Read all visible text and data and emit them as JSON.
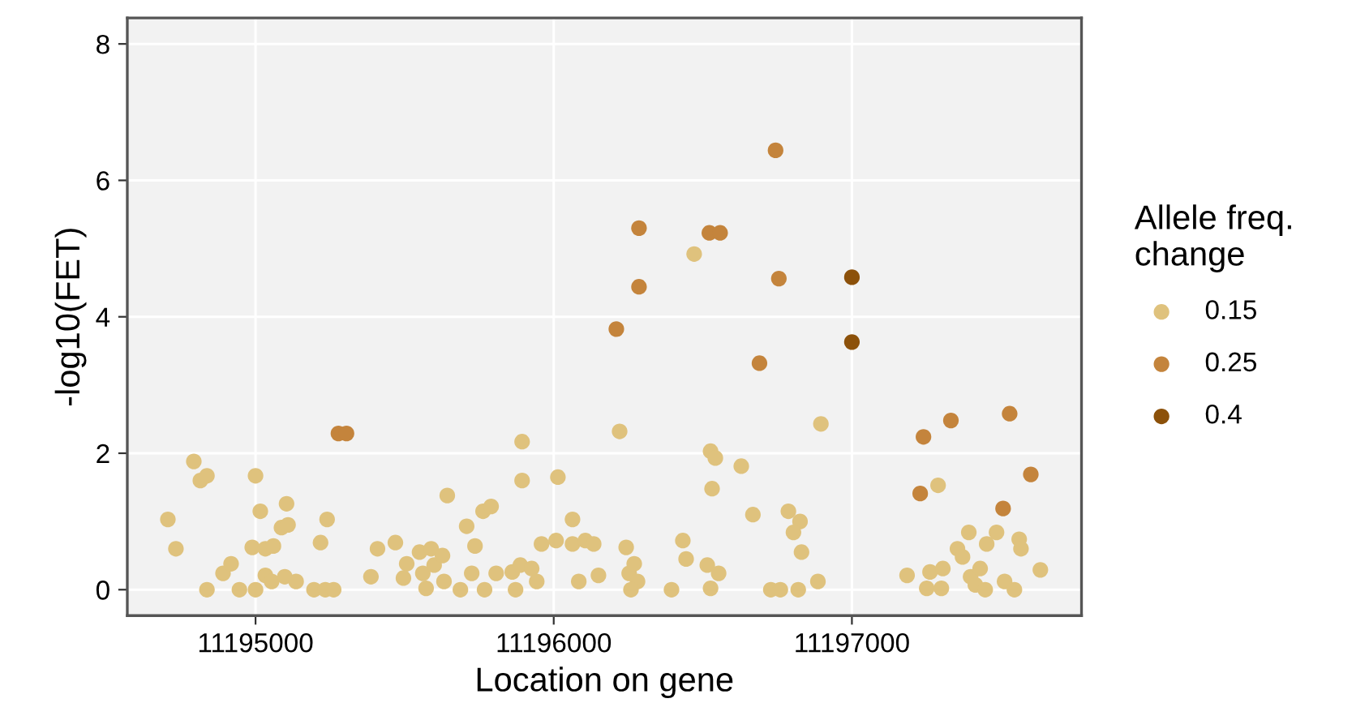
{
  "chart_data": {
    "type": "scatter",
    "xlabel": "Location on gene",
    "ylabel": "-log10(FET)",
    "legend_title": "Allele freq.\nchange",
    "legend": "right",
    "grid": true,
    "marker": "circle",
    "xlim": [
      11194570,
      11197770
    ],
    "ylim": [
      -0.38,
      8.38
    ],
    "xticks": [
      11195000,
      11196000,
      11197000
    ],
    "yticks": [
      0,
      2,
      4,
      6,
      8
    ],
    "series": [
      {
        "name": "0.15",
        "color": "#dfc27d",
        "x": [
          11194706,
          11194733,
          11194793,
          11194815,
          11194837,
          11194837,
          11194891,
          11194918,
          11194946,
          11195000,
          11195016,
          11194989,
          11195033,
          11195060,
          11195000,
          11195033,
          11195054,
          11195104,
          11195087,
          11195109,
          11195098,
          11195136,
          11195196,
          11195234,
          11195262,
          11195218,
          11195240,
          11195387,
          11195409,
          11195469,
          11195507,
          11195496,
          11195550,
          11195561,
          11195589,
          11195599,
          11195627,
          11195572,
          11195632,
          11195643,
          11195687,
          11195708,
          11195736,
          11195725,
          11195763,
          11195790,
          11195768,
          11195807,
          11195861,
          11195872,
          11195888,
          11195926,
          11195943,
          11195894,
          11195894,
          11195959,
          11196008,
          11196014,
          11196063,
          11196063,
          11196106,
          11196134,
          11196084,
          11196150,
          11196221,
          11196243,
          11196253,
          11196270,
          11196281,
          11196259,
          11196395,
          11196433,
          11196444,
          11196471,
          11196515,
          11196526,
          11196553,
          11196531,
          11196526,
          11196542,
          11196629,
          11196668,
          11196728,
          11196760,
          11196820,
          11196787,
          11196826,
          11196804,
          11196831,
          11196886,
          11196896,
          11197185,
          11197262,
          11197289,
          11197251,
          11197305,
          11197300,
          11197354,
          11197371,
          11197392,
          11197452,
          11197485,
          11197398,
          11197414,
          11197430,
          11197447,
          11197561,
          11197567,
          11197512,
          11197545,
          11197632
        ],
        "values": [
          1.03,
          0.6,
          1.88,
          1.6,
          1.67,
          0,
          0.24,
          0.38,
          0,
          1.67,
          1.15,
          0.62,
          0.6,
          0.64,
          0,
          0.21,
          0.12,
          1.26,
          0.91,
          0.95,
          0.19,
          0.12,
          0,
          0,
          0,
          0.69,
          1.03,
          0.19,
          0.6,
          0.69,
          0.38,
          0.17,
          0.55,
          0.24,
          0.6,
          0.36,
          0.5,
          0.02,
          0.12,
          1.38,
          0,
          0.93,
          0.64,
          0.24,
          1.15,
          1.22,
          0,
          0.24,
          0.26,
          0,
          0.36,
          0.31,
          0.12,
          2.17,
          1.6,
          0.67,
          0.72,
          1.65,
          1.03,
          0.67,
          0.72,
          0.67,
          0.12,
          0.21,
          2.32,
          0.62,
          0.24,
          0.38,
          0.12,
          0,
          0,
          0.72,
          0.45,
          4.92,
          0.36,
          0.02,
          0.24,
          1.48,
          2.03,
          1.93,
          1.81,
          1.1,
          0,
          0,
          0,
          1.15,
          1.0,
          0.84,
          0.55,
          0.12,
          2.43,
          0.21,
          0.26,
          1.53,
          0.02,
          0.31,
          0.02,
          0.6,
          0.48,
          0.84,
          0.67,
          0.84,
          0.19,
          0.07,
          0.31,
          0,
          0.74,
          0.6,
          0.12,
          0,
          0.29
        ]
      },
      {
        "name": "0.25",
        "color": "#c4843c",
        "x": [
          11195278,
          11195305,
          11196286,
          11196286,
          11196210,
          11196522,
          11196558,
          11196744,
          11196755,
          11196690,
          11197240,
          11197332,
          11197529,
          11197600,
          11197229,
          11197507
        ],
        "values": [
          2.29,
          2.29,
          5.3,
          4.44,
          3.82,
          5.23,
          5.23,
          6.44,
          4.56,
          3.32,
          2.24,
          2.48,
          2.58,
          1.69,
          1.41,
          1.19
        ]
      },
      {
        "name": "0.4",
        "color": "#8c510a",
        "x": [
          11197000,
          11197000
        ],
        "values": [
          4.58,
          3.63
        ]
      }
    ]
  }
}
